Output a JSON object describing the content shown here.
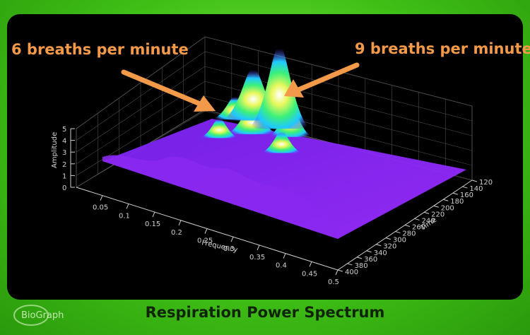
{
  "title": "Respiration Power Spectrum",
  "annotations": {
    "six": "6 breaths per minute",
    "nine": "9 breaths per minute"
  },
  "logo_text": "BioGraph",
  "colors": {
    "background_green": "#3fbf16",
    "plot_background": "#000000",
    "annotation_orange": "#f39a4a",
    "surface_low": "#8a1dff",
    "surface_high": "#ffffff"
  },
  "chart_data": {
    "type": "surface",
    "xlabel": "Frequency",
    "ylabel": "Time",
    "zlabel": "Amplitude",
    "x_ticks": [
      "0.05",
      "0.1",
      "0.15",
      "0.2",
      "0.25",
      "0.3",
      "0.35",
      "0.4",
      "0.45",
      "0.5"
    ],
    "y_ticks": [
      "120",
      "140",
      "160",
      "180",
      "200",
      "220",
      "240",
      "260",
      "280",
      "300",
      "320",
      "340",
      "360",
      "380",
      "400"
    ],
    "z_ticks": [
      "0",
      "1",
      "2",
      "3",
      "4",
      "5"
    ],
    "xlim": [
      0,
      0.5
    ],
    "ylim": [
      120,
      400
    ],
    "zlim": [
      0,
      5
    ],
    "grid": true,
    "colormap": "purple-blue-green-yellow-white",
    "peaks": [
      {
        "label": "6 breaths per minute",
        "frequency": 0.1,
        "time": 140,
        "amplitude": 2.9
      },
      {
        "label": "9 breaths per minute",
        "frequency": 0.15,
        "time": 140,
        "amplitude": 4.6
      }
    ]
  }
}
